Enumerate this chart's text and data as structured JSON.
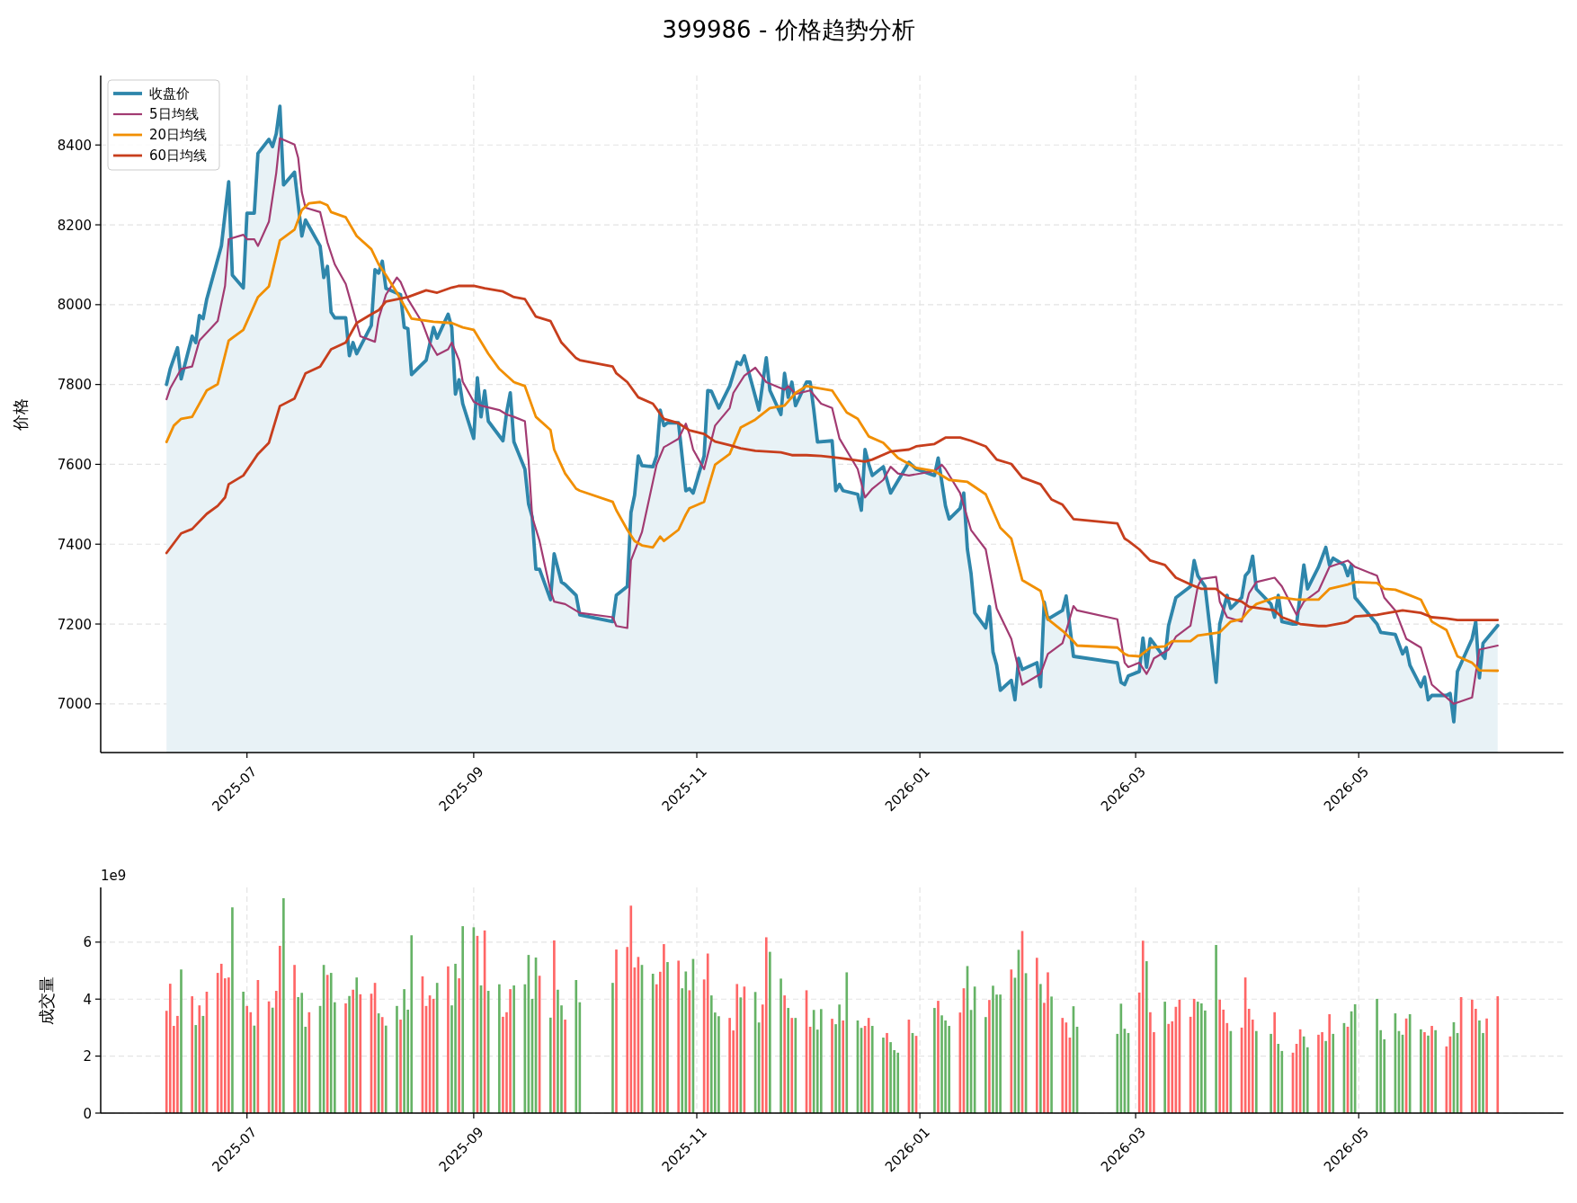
{
  "chart_data": [
    {
      "type": "line",
      "title": "399986 - 价格趋势分析",
      "ylabel": "价格",
      "grid": true,
      "legend": "top left",
      "xlim": [
        "2025-05-22",
        "2026-06-26"
      ],
      "ylim": [
        6878,
        8574
      ],
      "xticks": [
        "2025-07",
        "2025-09",
        "2025-11",
        "2026-01",
        "2026-03",
        "2026-05"
      ],
      "yticks": [
        7000,
        7200,
        7400,
        7600,
        7800,
        8000,
        8200,
        8400
      ],
      "series": [
        {
          "name": "收盘价",
          "type": "area",
          "color": "#2e86ab",
          "x": [
            "2025-06-09",
            "2025-06-10",
            "2025-06-12",
            "2025-06-13",
            "2025-06-16",
            "2025-06-17",
            "2025-06-18",
            "2025-06-19",
            "2025-06-20",
            "2025-06-24",
            "2025-06-26",
            "2025-06-27",
            "2025-06-30",
            "2025-07-01",
            "2025-07-03",
            "2025-07-04",
            "2025-07-07",
            "2025-07-08",
            "2025-07-09",
            "2025-07-10",
            "2025-07-11",
            "2025-07-14",
            "2025-07-16",
            "2025-07-17",
            "2025-07-21",
            "2025-07-22",
            "2025-07-23",
            "2025-07-24",
            "2025-07-25",
            "2025-07-28",
            "2025-07-29",
            "2025-07-30",
            "2025-07-31",
            "2025-08-04",
            "2025-08-05",
            "2025-08-06",
            "2025-08-07",
            "2025-08-08",
            "2025-08-12",
            "2025-08-13",
            "2025-08-14",
            "2025-08-15",
            "2025-08-19",
            "2025-08-21",
            "2025-08-22",
            "2025-08-25",
            "2025-08-26",
            "2025-08-27",
            "2025-08-28",
            "2025-08-29",
            "2025-09-01",
            "2025-09-02",
            "2025-09-03",
            "2025-09-04",
            "2025-09-05",
            "2025-09-09",
            "2025-09-10",
            "2025-09-11",
            "2025-09-12",
            "2025-09-15",
            "2025-09-16",
            "2025-09-17",
            "2025-09-18",
            "2025-09-19",
            "2025-09-22",
            "2025-09-23",
            "2025-09-25",
            "2025-09-26",
            "2025-09-29",
            "2025-09-30",
            "2025-10-09",
            "2025-10-10",
            "2025-10-13",
            "2025-10-14",
            "2025-10-15",
            "2025-10-16",
            "2025-10-17",
            "2025-10-20",
            "2025-10-21",
            "2025-10-22",
            "2025-10-23",
            "2025-10-24",
            "2025-10-27",
            "2025-10-29",
            "2025-10-30",
            "2025-10-31",
            "2025-11-03",
            "2025-11-04",
            "2025-11-05",
            "2025-11-07",
            "2025-11-10",
            "2025-11-12",
            "2025-11-13",
            "2025-11-14",
            "2025-11-18",
            "2025-11-20",
            "2025-11-21",
            "2025-11-24",
            "2025-11-25",
            "2025-11-26",
            "2025-11-27",
            "2025-11-28",
            "2025-12-01",
            "2025-12-02",
            "2025-12-03",
            "2025-12-04",
            "2025-12-08",
            "2025-12-09",
            "2025-12-10",
            "2025-12-11",
            "2025-12-15",
            "2025-12-16",
            "2025-12-17",
            "2025-12-18",
            "2025-12-19",
            "2025-12-22",
            "2025-12-24",
            "2025-12-29",
            "2025-12-31",
            "2026-01-05",
            "2026-01-06",
            "2026-01-08",
            "2026-01-09",
            "2026-01-12",
            "2026-01-13",
            "2026-01-14",
            "2026-01-15",
            "2026-01-16",
            "2026-01-19",
            "2026-01-20",
            "2026-01-21",
            "2026-01-22",
            "2026-01-23",
            "2026-01-26",
            "2026-01-27",
            "2026-01-28",
            "2026-01-29",
            "2026-02-02",
            "2026-02-03",
            "2026-02-04",
            "2026-02-05",
            "2026-02-09",
            "2026-02-10",
            "2026-02-12",
            "2026-02-24",
            "2026-02-25",
            "2026-02-26",
            "2026-02-27",
            "2026-03-02",
            "2026-03-03",
            "2026-03-04",
            "2026-03-05",
            "2026-03-09",
            "2026-03-10",
            "2026-03-12",
            "2026-03-16",
            "2026-03-17",
            "2026-03-18",
            "2026-03-20",
            "2026-03-23",
            "2026-03-24",
            "2026-03-26",
            "2026-03-27",
            "2026-03-30",
            "2026-03-31",
            "2026-04-01",
            "2026-04-02",
            "2026-04-03",
            "2026-04-07",
            "2026-04-08",
            "2026-04-09",
            "2026-04-10",
            "2026-04-13",
            "2026-04-14",
            "2026-04-16",
            "2026-04-17",
            "2026-04-20",
            "2026-04-22",
            "2026-04-23",
            "2026-04-24",
            "2026-04-27",
            "2026-04-28",
            "2026-04-29",
            "2026-04-30",
            "2026-05-06",
            "2026-05-07",
            "2026-05-11",
            "2026-05-13",
            "2026-05-14",
            "2026-05-15",
            "2026-05-18",
            "2026-05-19",
            "2026-05-20",
            "2026-05-21",
            "2026-05-25",
            "2026-05-26",
            "2026-05-27",
            "2026-05-28",
            "2026-06-01",
            "2026-06-02",
            "2026-06-03",
            "2026-06-04",
            "2026-06-08"
          ],
          "values": [
            7800,
            7839,
            7892,
            7814,
            7921,
            7905,
            7973,
            7965,
            8014,
            8147,
            8308,
            8074,
            8042,
            8229,
            8229,
            8379,
            8414,
            8396,
            8428,
            8497,
            8300,
            8332,
            8172,
            8212,
            8147,
            8068,
            8096,
            7981,
            7967,
            7967,
            7872,
            7905,
            7877,
            7948,
            8088,
            8079,
            8109,
            8041,
            8025,
            7943,
            7940,
            7825,
            7861,
            7943,
            7916,
            7976,
            7943,
            7776,
            7812,
            7752,
            7665,
            7817,
            7719,
            7784,
            7708,
            7659,
            7730,
            7779,
            7656,
            7588,
            7501,
            7468,
            7337,
            7337,
            7261,
            7376,
            7305,
            7299,
            7272,
            7223,
            7206,
            7272,
            7294,
            7479,
            7523,
            7621,
            7597,
            7594,
            7621,
            7736,
            7697,
            7704,
            7704,
            7534,
            7539,
            7528,
            7621,
            7785,
            7783,
            7741,
            7796,
            7856,
            7850,
            7872,
            7736,
            7867,
            7785,
            7725,
            7828,
            7768,
            7806,
            7747,
            7806,
            7806,
            7736,
            7656,
            7659,
            7534,
            7550,
            7534,
            7525,
            7485,
            7637,
            7601,
            7572,
            7594,
            7528,
            7605,
            7588,
            7572,
            7616,
            7496,
            7463,
            7490,
            7528,
            7387,
            7326,
            7228,
            7190,
            7244,
            7130,
            7097,
            7034,
            7059,
            7010,
            7114,
            7086,
            7103,
            7043,
            7255,
            7212,
            7234,
            7270,
            7119,
            7103,
            7054,
            7048,
            7070,
            7081,
            7165,
            7092,
            7163,
            7114,
            7196,
            7266,
            7294,
            7359,
            7321,
            7294,
            7054,
            7200,
            7272,
            7239,
            7266,
            7321,
            7332,
            7370,
            7288,
            7250,
            7217,
            7272,
            7206,
            7200,
            7200,
            7348,
            7288,
            7343,
            7392,
            7348,
            7365,
            7348,
            7321,
            7348,
            7266,
            7200,
            7179,
            7174,
            7125,
            7141,
            7097,
            7043,
            7067,
            7010,
            7021,
            7021,
            7026,
            6955,
            7081,
            7163,
            7206,
            7065,
            7152,
            7196
          ]
        },
        {
          "name": "5日均线",
          "color": "#a23b72",
          "x": [
            "2025-06-09",
            "2025-06-10",
            "2025-06-13",
            "2025-06-16",
            "2025-06-18",
            "2025-06-23",
            "2025-06-25",
            "2025-06-26",
            "2025-06-30",
            "2025-07-01",
            "2025-07-03",
            "2025-07-04",
            "2025-07-07",
            "2025-07-09",
            "2025-07-10",
            "2025-07-14",
            "2025-07-15",
            "2025-07-16",
            "2025-07-17",
            "2025-07-21",
            "2025-07-23",
            "2025-07-25",
            "2025-07-28",
            "2025-07-30",
            "2025-08-01",
            "2025-08-05",
            "2025-08-06",
            "2025-08-08",
            "2025-08-11",
            "2025-08-12",
            "2025-08-14",
            "2025-08-18",
            "2025-08-20",
            "2025-08-22",
            "2025-08-25",
            "2025-08-26",
            "2025-08-28",
            "2025-08-29",
            "2025-09-01",
            "2025-09-03",
            "2025-09-08",
            "2025-09-10",
            "2025-09-12",
            "2025-09-15",
            "2025-09-16",
            "2025-09-17",
            "2025-09-19",
            "2025-09-22",
            "2025-09-23",
            "2025-09-26",
            "2025-09-30",
            "2025-10-09",
            "2025-10-10",
            "2025-10-13",
            "2025-10-14",
            "2025-10-17",
            "2025-10-21",
            "2025-10-23",
            "2025-10-24",
            "2025-10-27",
            "2025-10-29",
            "2025-10-30",
            "2025-10-31",
            "2025-11-03",
            "2025-11-06",
            "2025-11-10",
            "2025-11-11",
            "2025-11-14",
            "2025-11-17",
            "2025-11-20",
            "2025-11-25",
            "2025-11-26",
            "2025-11-28",
            "2025-12-02",
            "2025-12-05",
            "2025-12-08",
            "2025-12-10",
            "2025-12-15",
            "2025-12-17",
            "2025-12-19",
            "2025-12-22",
            "2025-12-24",
            "2025-12-26",
            "2025-12-29",
            "2026-01-05",
            "2026-01-07",
            "2026-01-08",
            "2026-01-12",
            "2026-01-15",
            "2026-01-19",
            "2026-01-22",
            "2026-01-26",
            "2026-01-29",
            "2026-02-03",
            "2026-02-05",
            "2026-02-09",
            "2026-02-12",
            "2026-02-13",
            "2026-02-24",
            "2026-02-26",
            "2026-02-27",
            "2026-03-02",
            "2026-03-04",
            "2026-03-05",
            "2026-03-06",
            "2026-03-10",
            "2026-03-12",
            "2026-03-16",
            "2026-03-18",
            "2026-03-19",
            "2026-03-23",
            "2026-03-24",
            "2026-03-26",
            "2026-03-30",
            "2026-04-01",
            "2026-04-03",
            "2026-04-08",
            "2026-04-10",
            "2026-04-14",
            "2026-04-16",
            "2026-04-20",
            "2026-04-23",
            "2026-04-28",
            "2026-04-30",
            "2026-05-06",
            "2026-05-08",
            "2026-05-11",
            "2026-05-14",
            "2026-05-18",
            "2026-05-21",
            "2026-05-27",
            "2026-06-01",
            "2026-06-03",
            "2026-06-08"
          ],
          "values": [
            7763,
            7790,
            7839,
            7845,
            7910,
            7959,
            8047,
            8164,
            8175,
            8164,
            8164,
            8147,
            8208,
            8330,
            8417,
            8401,
            8368,
            8281,
            8243,
            8232,
            8156,
            8101,
            8052,
            7987,
            7921,
            7907,
            7965,
            8025,
            8068,
            8057,
            8014,
            7954,
            7905,
            7874,
            7888,
            7905,
            7861,
            7807,
            7757,
            7747,
            7736,
            7725,
            7719,
            7708,
            7610,
            7468,
            7408,
            7283,
            7256,
            7250,
            7228,
            7217,
            7195,
            7190,
            7359,
            7430,
            7599,
            7643,
            7648,
            7664,
            7702,
            7675,
            7637,
            7588,
            7697,
            7741,
            7779,
            7822,
            7842,
            7806,
            7787,
            7796,
            7776,
            7785,
            7752,
            7741,
            7665,
            7588,
            7517,
            7539,
            7561,
            7594,
            7577,
            7572,
            7583,
            7599,
            7588,
            7528,
            7435,
            7387,
            7239,
            7163,
            7048,
            7075,
            7125,
            7152,
            7245,
            7234,
            7212,
            7103,
            7092,
            7103,
            7075,
            7092,
            7114,
            7136,
            7168,
            7196,
            7294,
            7313,
            7318,
            7256,
            7217,
            7206,
            7277,
            7305,
            7316,
            7294,
            7223,
            7256,
            7283,
            7343,
            7359,
            7343,
            7321,
            7266,
            7234,
            7163,
            7141,
            7048,
            7000,
            7016,
            7136,
            7146
          ]
        },
        {
          "name": "20日均线",
          "color": "#f18f01",
          "x": [
            "2025-06-09",
            "2025-06-11",
            "2025-06-13",
            "2025-06-16",
            "2025-06-20",
            "2025-06-23",
            "2025-06-26",
            "2025-06-30",
            "2025-07-04",
            "2025-07-07",
            "2025-07-10",
            "2025-07-14",
            "2025-07-16",
            "2025-07-18",
            "2025-07-21",
            "2025-07-23",
            "2025-07-24",
            "2025-07-28",
            "2025-07-31",
            "2025-08-04",
            "2025-08-06",
            "2025-08-08",
            "2025-08-11",
            "2025-08-15",
            "2025-08-21",
            "2025-08-26",
            "2025-08-29",
            "2025-09-01",
            "2025-09-05",
            "2025-09-08",
            "2025-09-12",
            "2025-09-15",
            "2025-09-18",
            "2025-09-22",
            "2025-09-23",
            "2025-09-26",
            "2025-09-29",
            "2025-09-30",
            "2025-10-09",
            "2025-10-10",
            "2025-10-13",
            "2025-10-15",
            "2025-10-17",
            "2025-10-20",
            "2025-10-22",
            "2025-10-23",
            "2025-10-27",
            "2025-10-29",
            "2025-10-30",
            "2025-11-03",
            "2025-11-06",
            "2025-11-10",
            "2025-11-13",
            "2025-11-17",
            "2025-11-21",
            "2025-11-25",
            "2025-11-28",
            "2025-12-01",
            "2025-12-08",
            "2025-12-12",
            "2025-12-15",
            "2025-12-18",
            "2025-12-22",
            "2025-12-26",
            "2025-12-31",
            "2026-01-05",
            "2026-01-09",
            "2026-01-14",
            "2026-01-19",
            "2026-01-23",
            "2026-01-26",
            "2026-01-29",
            "2026-02-03",
            "2026-02-05",
            "2026-02-09",
            "2026-02-12",
            "2026-02-13",
            "2026-02-24",
            "2026-02-26",
            "2026-02-27",
            "2026-03-02",
            "2026-03-05",
            "2026-03-09",
            "2026-03-11",
            "2026-03-16",
            "2026-03-18",
            "2026-03-24",
            "2026-03-27",
            "2026-03-30",
            "2026-04-01",
            "2026-04-03",
            "2026-04-08",
            "2026-04-10",
            "2026-04-14",
            "2026-04-16",
            "2026-04-20",
            "2026-04-23",
            "2026-04-28",
            "2026-04-30",
            "2026-05-06",
            "2026-05-08",
            "2026-05-11",
            "2026-05-15",
            "2026-05-18",
            "2026-05-21",
            "2026-05-25",
            "2026-05-28",
            "2026-06-01",
            "2026-06-03",
            "2026-06-08"
          ],
          "values": [
            7656,
            7697,
            7714,
            7719,
            7785,
            7801,
            7910,
            7937,
            8019,
            8046,
            8161,
            8188,
            8237,
            8254,
            8257,
            8249,
            8232,
            8219,
            8172,
            8139,
            8101,
            8074,
            8030,
            7965,
            7957,
            7954,
            7943,
            7937,
            7877,
            7839,
            7806,
            7796,
            7719,
            7686,
            7637,
            7577,
            7539,
            7534,
            7506,
            7485,
            7436,
            7408,
            7397,
            7392,
            7419,
            7408,
            7436,
            7474,
            7490,
            7506,
            7599,
            7626,
            7692,
            7712,
            7741,
            7747,
            7779,
            7796,
            7785,
            7730,
            7714,
            7670,
            7654,
            7616,
            7591,
            7583,
            7561,
            7556,
            7525,
            7441,
            7414,
            7310,
            7283,
            7212,
            7183,
            7157,
            7146,
            7141,
            7125,
            7121,
            7119,
            7141,
            7144,
            7157,
            7157,
            7171,
            7179,
            7206,
            7212,
            7234,
            7250,
            7266,
            7266,
            7261,
            7261,
            7261,
            7288,
            7299,
            7305,
            7303,
            7288,
            7286,
            7272,
            7261,
            7206,
            7185,
            7119,
            7103,
            7084,
            7083
          ]
        },
        {
          "name": "60日均线",
          "color": "#c73e1d",
          "x": [
            "2025-06-09",
            "2025-06-13",
            "2025-06-16",
            "2025-06-20",
            "2025-06-23",
            "2025-06-25",
            "2025-06-26",
            "2025-06-30",
            "2025-07-04",
            "2025-07-07",
            "2025-07-10",
            "2025-07-14",
            "2025-07-17",
            "2025-07-21",
            "2025-07-24",
            "2025-07-28",
            "2025-07-31",
            "2025-08-04",
            "2025-08-06",
            "2025-08-08",
            "2025-08-14",
            "2025-08-19",
            "2025-08-22",
            "2025-08-26",
            "2025-08-28",
            "2025-09-01",
            "2025-09-04",
            "2025-09-09",
            "2025-09-12",
            "2025-09-15",
            "2025-09-18",
            "2025-09-22",
            "2025-09-25",
            "2025-09-29",
            "2025-09-30",
            "2025-10-09",
            "2025-10-10",
            "2025-10-13",
            "2025-10-16",
            "2025-10-20",
            "2025-10-23",
            "2025-10-27",
            "2025-10-30",
            "2025-11-03",
            "2025-11-06",
            "2025-11-10",
            "2025-11-13",
            "2025-11-17",
            "2025-11-24",
            "2025-11-27",
            "2025-12-01",
            "2025-12-05",
            "2025-12-10",
            "2025-12-17",
            "2025-12-19",
            "2025-12-24",
            "2025-12-29",
            "2025-12-31",
            "2026-01-05",
            "2026-01-08",
            "2026-01-12",
            "2026-01-15",
            "2026-01-19",
            "2026-01-22",
            "2026-01-26",
            "2026-01-29",
            "2026-02-03",
            "2026-02-06",
            "2026-02-09",
            "2026-02-12",
            "2026-02-24",
            "2026-02-26",
            "2026-02-27",
            "2026-03-02",
            "2026-03-05",
            "2026-03-09",
            "2026-03-12",
            "2026-03-16",
            "2026-03-19",
            "2026-03-23",
            "2026-03-26",
            "2026-03-30",
            "2026-04-01",
            "2026-04-08",
            "2026-04-10",
            "2026-04-15",
            "2026-04-20",
            "2026-04-22",
            "2026-04-27",
            "2026-04-28",
            "2026-04-30",
            "2026-05-06",
            "2026-05-08",
            "2026-05-13",
            "2026-05-18",
            "2026-05-21",
            "2026-05-25",
            "2026-05-28",
            "2026-06-01",
            "2026-06-03",
            "2026-06-08"
          ],
          "values": [
            7378,
            7427,
            7438,
            7476,
            7496,
            7517,
            7550,
            7572,
            7626,
            7654,
            7746,
            7765,
            7828,
            7845,
            7888,
            7905,
            7954,
            7976,
            7986,
            8008,
            8019,
            8036,
            8030,
            8043,
            8047,
            8047,
            8041,
            8033,
            8019,
            8014,
            7970,
            7959,
            7905,
            7866,
            7861,
            7845,
            7828,
            7806,
            7768,
            7752,
            7714,
            7703,
            7685,
            7676,
            7657,
            7648,
            7640,
            7634,
            7630,
            7623,
            7623,
            7621,
            7616,
            7607,
            7612,
            7632,
            7637,
            7645,
            7651,
            7667,
            7667,
            7659,
            7645,
            7612,
            7601,
            7567,
            7550,
            7512,
            7499,
            7463,
            7452,
            7414,
            7408,
            7387,
            7359,
            7348,
            7316,
            7299,
            7288,
            7288,
            7266,
            7256,
            7243,
            7234,
            7217,
            7200,
            7195,
            7195,
            7203,
            7206,
            7219,
            7223,
            7226,
            7234,
            7228,
            7217,
            7214,
            7210,
            7210,
            7210,
            7210
          ]
        }
      ]
    },
    {
      "type": "bar",
      "ylabel": "成交量",
      "grid": true,
      "annotations": [
        "1e9"
      ],
      "xlim": [
        "2025-05-22",
        "2026-06-26"
      ],
      "ylim": [
        0,
        7.92
      ],
      "xticks": [
        "2025-07",
        "2025-09",
        "2025-11",
        "2026-01",
        "2026-03",
        "2026-05"
      ],
      "yticks": [
        0,
        2,
        4,
        6
      ],
      "x": [
        "2025-06-09",
        "2025-06-10",
        "2025-06-11",
        "2025-06-12",
        "2025-06-13",
        "2025-06-16",
        "2025-06-17",
        "2025-06-18",
        "2025-06-19",
        "2025-06-20",
        "2025-06-23",
        "2025-06-24",
        "2025-06-25",
        "2025-06-26",
        "2025-06-27",
        "2025-06-30",
        "2025-07-01",
        "2025-07-02",
        "2025-07-03",
        "2025-07-04",
        "2025-07-07",
        "2025-07-08",
        "2025-07-09",
        "2025-07-10",
        "2025-07-11",
        "2025-07-14",
        "2025-07-15",
        "2025-07-16",
        "2025-07-17",
        "2025-07-18",
        "2025-07-21",
        "2025-07-22",
        "2025-07-23",
        "2025-07-24",
        "2025-07-25",
        "2025-07-28",
        "2025-07-29",
        "2025-07-30",
        "2025-07-31",
        "2025-08-01",
        "2025-08-04",
        "2025-08-05",
        "2025-08-06",
        "2025-08-07",
        "2025-08-08",
        "2025-08-11",
        "2025-08-12",
        "2025-08-13",
        "2025-08-14",
        "2025-08-15",
        "2025-08-18",
        "2025-08-19",
        "2025-08-20",
        "2025-08-21",
        "2025-08-22",
        "2025-08-25",
        "2025-08-26",
        "2025-08-27",
        "2025-08-28",
        "2025-08-29",
        "2025-09-01",
        "2025-09-02",
        "2025-09-03",
        "2025-09-04",
        "2025-09-05",
        "2025-09-08",
        "2025-09-09",
        "2025-09-10",
        "2025-09-11",
        "2025-09-12",
        "2025-09-15",
        "2025-09-16",
        "2025-09-17",
        "2025-09-18",
        "2025-09-19",
        "2025-09-22",
        "2025-09-23",
        "2025-09-24",
        "2025-09-25",
        "2025-09-26",
        "2025-09-29",
        "2025-09-30",
        "2025-10-09",
        "2025-10-10",
        "2025-10-13",
        "2025-10-14",
        "2025-10-15",
        "2025-10-16",
        "2025-10-17",
        "2025-10-20",
        "2025-10-21",
        "2025-10-22",
        "2025-10-23",
        "2025-10-24",
        "2025-10-27",
        "2025-10-28",
        "2025-10-29",
        "2025-10-30",
        "2025-10-31",
        "2025-11-03",
        "2025-11-04",
        "2025-11-05",
        "2025-11-06",
        "2025-11-07",
        "2025-11-10",
        "2025-11-11",
        "2025-11-12",
        "2025-11-13",
        "2025-11-14",
        "2025-11-17",
        "2025-11-18",
        "2025-11-19",
        "2025-11-20",
        "2025-11-21",
        "2025-11-24",
        "2025-11-25",
        "2025-11-26",
        "2025-11-27",
        "2025-11-28",
        "2025-12-01",
        "2025-12-02",
        "2025-12-03",
        "2025-12-04",
        "2025-12-05",
        "2025-12-08",
        "2025-12-09",
        "2025-12-10",
        "2025-12-11",
        "2025-12-12",
        "2025-12-15",
        "2025-12-16",
        "2025-12-17",
        "2025-12-18",
        "2025-12-19",
        "2025-12-22",
        "2025-12-23",
        "2025-12-24",
        "2025-12-25",
        "2025-12-26",
        "2025-12-29",
        "2025-12-30",
        "2025-12-31",
        "2026-01-05",
        "2026-01-06",
        "2026-01-07",
        "2026-01-08",
        "2026-01-09",
        "2026-01-12",
        "2026-01-13",
        "2026-01-14",
        "2026-01-15",
        "2026-01-16",
        "2026-01-19",
        "2026-01-20",
        "2026-01-21",
        "2026-01-22",
        "2026-01-23",
        "2026-01-26",
        "2026-01-27",
        "2026-01-28",
        "2026-01-29",
        "2026-01-30",
        "2026-02-02",
        "2026-02-03",
        "2026-02-04",
        "2026-02-05",
        "2026-02-06",
        "2026-02-09",
        "2026-02-10",
        "2026-02-11",
        "2026-02-12",
        "2026-02-13",
        "2026-02-24",
        "2026-02-25",
        "2026-02-26",
        "2026-02-27",
        "2026-03-02",
        "2026-03-03",
        "2026-03-04",
        "2026-03-05",
        "2026-03-06",
        "2026-03-09",
        "2026-03-10",
        "2026-03-11",
        "2026-03-12",
        "2026-03-13",
        "2026-03-16",
        "2026-03-17",
        "2026-03-18",
        "2026-03-19",
        "2026-03-20",
        "2026-03-23",
        "2026-03-24",
        "2026-03-25",
        "2026-03-26",
        "2026-03-27",
        "2026-03-30",
        "2026-03-31",
        "2026-04-01",
        "2026-04-02",
        "2026-04-03",
        "2026-04-07",
        "2026-04-08",
        "2026-04-09",
        "2026-04-10",
        "2026-04-13",
        "2026-04-14",
        "2026-04-15",
        "2026-04-16",
        "2026-04-17",
        "2026-04-20",
        "2026-04-21",
        "2026-04-22",
        "2026-04-23",
        "2026-04-24",
        "2026-04-27",
        "2026-04-28",
        "2026-04-29",
        "2026-04-30",
        "2026-05-06",
        "2026-05-07",
        "2026-05-08",
        "2026-05-11",
        "2026-05-12",
        "2026-05-13",
        "2026-05-14",
        "2026-05-15",
        "2026-05-18",
        "2026-05-19",
        "2026-05-20",
        "2026-05-21",
        "2026-05-22",
        "2026-05-25",
        "2026-05-26",
        "2026-05-27",
        "2026-05-28",
        "2026-05-29",
        "2026-06-01",
        "2026-06-02",
        "2026-06-03",
        "2026-06-04",
        "2026-06-05",
        "2026-06-08"
      ],
      "values": [
        3.59,
        4.54,
        3.06,
        3.41,
        5.04,
        4.1,
        3.09,
        3.78,
        3.41,
        4.26,
        4.92,
        5.24,
        4.73,
        4.76,
        7.22,
        4.26,
        3.76,
        3.54,
        3.07,
        4.67,
        3.92,
        3.7,
        4.29,
        5.87,
        7.54,
        5.2,
        4.07,
        4.22,
        3.03,
        3.54,
        3.76,
        5.2,
        4.85,
        4.92,
        3.89,
        3.85,
        4.11,
        4.33,
        4.76,
        4.17,
        4.19,
        4.57,
        3.5,
        3.37,
        3.07,
        3.76,
        3.28,
        4.35,
        3.63,
        6.24,
        4.8,
        3.76,
        4.13,
        4.01,
        4.57,
        5.15,
        3.78,
        5.24,
        4.73,
        6.56,
        6.52,
        6.22,
        4.48,
        6.41,
        4.29,
        4.52,
        3.38,
        3.54,
        4.35,
        4.48,
        4.52,
        5.55,
        4.01,
        5.46,
        4.82,
        3.35,
        6.06,
        4.33,
        3.78,
        3.28,
        4.67,
        3.89,
        4.57,
        5.74,
        5.83,
        7.28,
        5.11,
        5.48,
        5.2,
        4.89,
        4.52,
        4.96,
        5.93,
        5.3,
        5.35,
        4.38,
        4.97,
        4.31,
        5.41,
        4.69,
        5.6,
        4.13,
        3.53,
        3.4,
        3.34,
        2.9,
        4.53,
        4.06,
        4.44,
        4.25,
        3.18,
        3.81,
        6.17,
        5.66,
        4.72,
        4.13,
        3.69,
        3.34,
        3.34,
        4.31,
        3.03,
        3.62,
        2.93,
        3.65,
        3.31,
        3.12,
        3.81,
        3.25,
        4.94,
        3.25,
        2.99,
        3.06,
        3.34,
        3.06,
        2.65,
        2.81,
        2.49,
        2.21,
        2.12,
        3.28,
        2.81,
        2.71,
        3.69,
        3.94,
        3.43,
        3.25,
        3.06,
        3.53,
        4.38,
        5.16,
        3.62,
        4.44,
        3.37,
        3.97,
        4.47,
        4.16,
        4.16,
        5.04,
        4.75,
        5.73,
        6.39,
        4.91,
        5.45,
        4.53,
        3.87,
        4.94,
        4.09,
        3.34,
        3.18,
        2.65,
        3.75,
        3.03,
        2.78,
        3.84,
        2.96,
        2.81,
        4.23,
        6.05,
        5.33,
        3.54,
        2.84,
        3.91,
        3.13,
        3.22,
        3.73,
        3.98,
        3.38,
        4.01,
        3.91,
        3.85,
        3.6,
        5.9,
        3.98,
        3.63,
        3.16,
        2.88,
        3.0,
        4.76,
        3.66,
        3.28,
        2.88,
        2.78,
        3.54,
        2.43,
        2.18,
        2.12,
        2.43,
        2.94,
        2.69,
        2.31,
        2.75,
        2.84,
        2.53,
        3.47,
        2.78,
        3.16,
        3.03,
        3.57,
        3.82,
        4.01,
        2.91,
        2.59,
        3.5,
        2.88,
        2.75,
        3.32,
        3.47,
        2.94,
        2.84,
        2.72,
        3.06,
        2.91,
        2.34,
        2.69,
        3.19,
        2.81,
        4.07,
        3.98,
        3.66,
        3.25,
        2.81,
        3.32,
        4.1
      ],
      "colors": [
        "#ff6666",
        "#ff6666",
        "#ff6666",
        "#ff6666",
        "#66b366",
        "#ff6666",
        "#66b366",
        "#ff6666",
        "#66b366",
        "#ff6666",
        "#ff6666",
        "#ff6666",
        "#ff6666",
        "#ff6666",
        "#66b366",
        "#66b366",
        "#ff6666",
        "#ff6666",
        "#66b366",
        "#ff6666",
        "#ff6666",
        "#66b366",
        "#ff6666",
        "#ff6666",
        "#66b366",
        "#ff6666",
        "#66b366",
        "#66b366",
        "#66b366",
        "#ff6666",
        "#66b366",
        "#66b366",
        "#ff6666",
        "#66b366",
        "#66b366",
        "#ff6666",
        "#66b366",
        "#ff6666",
        "#66b366",
        "#ff6666",
        "#ff6666",
        "#ff6666",
        "#66b366",
        "#ff6666",
        "#66b366",
        "#66b366",
        "#ff6666",
        "#66b366",
        "#66b366",
        "#66b366",
        "#ff6666",
        "#ff6666",
        "#ff6666",
        "#ff6666",
        "#66b366",
        "#ff6666",
        "#66b366",
        "#66b366",
        "#ff6666",
        "#66b366",
        "#66b366",
        "#ff6666",
        "#66b366",
        "#ff6666",
        "#66b366",
        "#66b366",
        "#ff6666",
        "#ff6666",
        "#ff6666",
        "#66b366",
        "#66b366",
        "#66b366",
        "#66b366",
        "#66b366",
        "#ff6666",
        "#66b366",
        "#ff6666",
        "#66b366",
        "#66b366",
        "#ff6666",
        "#66b366",
        "#66b366",
        "#66b366",
        "#ff6666",
        "#ff6666",
        "#ff6666",
        "#ff6666",
        "#ff6666",
        "#66b366",
        "#66b366",
        "#ff6666",
        "#ff6666",
        "#ff6666",
        "#66b366",
        "#ff6666",
        "#66b366",
        "#66b366",
        "#ff6666",
        "#66b366",
        "#ff6666",
        "#ff6666",
        "#66b366",
        "#66b366",
        "#66b366",
        "#ff6666",
        "#ff6666",
        "#ff6666",
        "#66b366",
        "#ff6666",
        "#66b366",
        "#66b366",
        "#ff6666",
        "#ff6666",
        "#66b366",
        "#66b366",
        "#ff6666",
        "#66b366",
        "#ff6666",
        "#66b366",
        "#ff6666",
        "#ff6666",
        "#66b366",
        "#66b366",
        "#66b366",
        "#ff6666",
        "#66b366",
        "#66b366",
        "#ff6666",
        "#66b366",
        "#66b366",
        "#66b366",
        "#ff6666",
        "#ff6666",
        "#66b366",
        "#66b366",
        "#ff6666",
        "#66b366",
        "#66b366",
        "#66b366",
        "#ff6666",
        "#66b366",
        "#ff6666",
        "#66b366",
        "#ff6666",
        "#66b366",
        "#66b366",
        "#66b366",
        "#ff6666",
        "#ff6666",
        "#66b366",
        "#66b366",
        "#66b366",
        "#66b366",
        "#ff6666",
        "#66b366",
        "#66b366",
        "#66b366",
        "#ff6666",
        "#66b366",
        "#66b366",
        "#ff6666",
        "#66b366",
        "#ff6666",
        "#66b366",
        "#ff6666",
        "#ff6666",
        "#66b366",
        "#ff6666",
        "#ff6666",
        "#ff6666",
        "#66b366",
        "#66b366",
        "#66b366",
        "#66b366",
        "#66b366",
        "#66b366",
        "#ff6666",
        "#ff6666",
        "#66b366",
        "#ff6666",
        "#ff6666",
        "#66b366",
        "#ff6666",
        "#ff6666",
        "#ff6666",
        "#ff6666",
        "#ff6666",
        "#ff6666",
        "#66b366",
        "#66b366",
        "#66b366",
        "#66b366",
        "#ff6666",
        "#ff6666",
        "#ff6666",
        "#66b366",
        "#ff6666",
        "#ff6666",
        "#ff6666",
        "#ff6666",
        "#66b366",
        "#66b366",
        "#ff6666",
        "#66b366",
        "#66b366",
        "#ff6666",
        "#ff6666",
        "#ff6666",
        "#66b366",
        "#66b366",
        "#ff6666",
        "#ff6666",
        "#66b366",
        "#ff6666",
        "#66b366",
        "#66b366",
        "#ff6666",
        "#66b366",
        "#66b366",
        "#66b366",
        "#66b366",
        "#66b366",
        "#66b366",
        "#66b366",
        "#66b366",
        "#ff6666",
        "#66b366",
        "#66b366",
        "#ff6666",
        "#66b366",
        "#ff6666",
        "#66b366",
        "#ff6666",
        "#ff6666",
        "#66b366",
        "#66b366",
        "#ff6666",
        "#ff6666",
        "#ff6666",
        "#66b366",
        "#66b366",
        "#ff6666",
        "#ff6666"
      ]
    }
  ]
}
